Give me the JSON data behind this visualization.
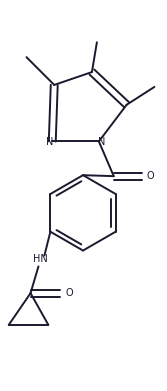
{
  "bg_color": "#ffffff",
  "line_color": "#1a1a2e",
  "line_width": 1.4,
  "figsize": [
    1.67,
    3.91
  ],
  "dpi": 100,
  "xlim": [
    0,
    167
  ],
  "ylim": [
    0,
    391
  ]
}
